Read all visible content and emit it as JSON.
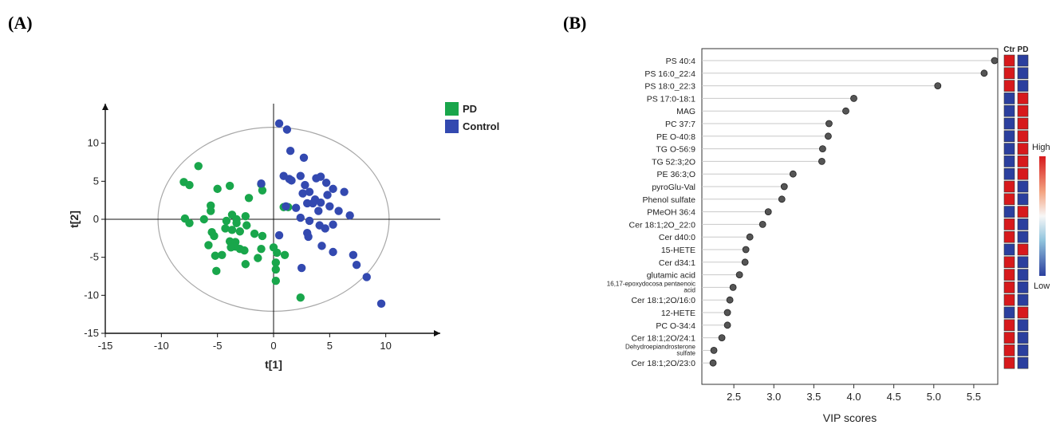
{
  "panels": {
    "a_label": "(A)",
    "b_label": "(B)"
  },
  "colors": {
    "pd": "#19a64b",
    "control": "#3349b0",
    "high": "#d7191c",
    "low": "#2b3f9e",
    "dot": "#555555"
  },
  "chart_data": [
    {
      "type": "scatter",
      "panel": "A",
      "title": "",
      "xlabel": "t[1]",
      "ylabel": "t[2]",
      "xlim": [
        -15,
        15
      ],
      "ylim": [
        -15,
        15
      ],
      "xticks": [
        -15,
        -10,
        -5,
        0,
        5,
        10
      ],
      "yticks": [
        -15,
        -10,
        -5,
        0,
        5,
        10
      ],
      "ellipse": {
        "rx": 10.3,
        "ry": 12.1
      },
      "legend_position": "top-right",
      "series": [
        {
          "name": "PD",
          "points": [
            [
              -8.0,
              4.9
            ],
            [
              -7.5,
              4.5
            ],
            [
              -6.7,
              7.0
            ],
            [
              -5.0,
              4.0
            ],
            [
              -3.9,
              4.4
            ],
            [
              -2.2,
              2.8
            ],
            [
              -1.1,
              4.6
            ],
            [
              -1.0,
              3.8
            ],
            [
              -5.6,
              1.8
            ],
            [
              -5.6,
              1.1
            ],
            [
              -6.2,
              0.0
            ],
            [
              -7.5,
              -0.5
            ],
            [
              -7.9,
              0.1
            ],
            [
              -4.2,
              -0.2
            ],
            [
              -3.7,
              0.6
            ],
            [
              -3.3,
              0.0
            ],
            [
              -2.5,
              0.4
            ],
            [
              -2.4,
              -0.8
            ],
            [
              -3.3,
              -0.5
            ],
            [
              -4.3,
              -1.2
            ],
            [
              -3.7,
              -1.4
            ],
            [
              -3.0,
              -1.6
            ],
            [
              -1.7,
              -1.9
            ],
            [
              -1.0,
              -2.2
            ],
            [
              -5.3,
              -2.2
            ],
            [
              -5.5,
              -1.7
            ],
            [
              -5.8,
              -3.4
            ],
            [
              -3.9,
              -2.9
            ],
            [
              -3.4,
              -3.0
            ],
            [
              -3.0,
              -3.9
            ],
            [
              -2.6,
              -4.1
            ],
            [
              -3.4,
              -3.6
            ],
            [
              -3.8,
              -3.7
            ],
            [
              -1.4,
              -5.1
            ],
            [
              -4.6,
              -4.7
            ],
            [
              -5.2,
              -4.8
            ],
            [
              -2.5,
              -5.9
            ],
            [
              -1.1,
              -3.9
            ],
            [
              -5.1,
              -6.8
            ],
            [
              0.0,
              -3.7
            ],
            [
              0.3,
              -4.4
            ],
            [
              1.0,
              -4.7
            ],
            [
              0.2,
              -5.7
            ],
            [
              0.2,
              -6.6
            ],
            [
              0.2,
              -8.1
            ],
            [
              2.4,
              -10.3
            ],
            [
              1.3,
              1.6
            ],
            [
              0.9,
              1.6
            ]
          ]
        },
        {
          "name": "Control",
          "points": [
            [
              0.5,
              12.6
            ],
            [
              1.2,
              11.8
            ],
            [
              1.5,
              9.0
            ],
            [
              2.7,
              8.1
            ],
            [
              0.9,
              5.7
            ],
            [
              1.4,
              5.3
            ],
            [
              1.6,
              5.1
            ],
            [
              2.4,
              5.7
            ],
            [
              3.8,
              5.4
            ],
            [
              4.2,
              5.6
            ],
            [
              4.7,
              4.8
            ],
            [
              5.3,
              4.0
            ],
            [
              6.3,
              3.6
            ],
            [
              2.8,
              4.5
            ],
            [
              2.6,
              3.4
            ],
            [
              3.2,
              3.6
            ],
            [
              3.7,
              2.6
            ],
            [
              4.8,
              3.2
            ],
            [
              3.0,
              2.1
            ],
            [
              3.5,
              2.1
            ],
            [
              4.2,
              2.2
            ],
            [
              5.0,
              1.7
            ],
            [
              4.0,
              1.1
            ],
            [
              5.8,
              1.1
            ],
            [
              6.8,
              0.5
            ],
            [
              2.0,
              1.5
            ],
            [
              1.1,
              1.7
            ],
            [
              2.4,
              0.2
            ],
            [
              3.2,
              -0.2
            ],
            [
              4.1,
              -0.8
            ],
            [
              4.6,
              -1.2
            ],
            [
              3.0,
              -1.8
            ],
            [
              0.5,
              -2.1
            ],
            [
              3.1,
              -2.3
            ],
            [
              4.3,
              -3.5
            ],
            [
              5.3,
              -4.3
            ],
            [
              7.1,
              -4.7
            ],
            [
              7.4,
              -6.0
            ],
            [
              8.3,
              -7.6
            ],
            [
              9.6,
              -11.1
            ],
            [
              2.5,
              -6.4
            ],
            [
              -1.1,
              4.7
            ],
            [
              5.3,
              -0.7
            ]
          ]
        }
      ]
    },
    {
      "type": "scatter",
      "panel": "B",
      "title": "",
      "xlabel": "VIP scores",
      "xlim": [
        2.1,
        5.8
      ],
      "xticks": [
        2.5,
        3.0,
        3.5,
        4.0,
        4.5,
        5.0,
        5.5
      ],
      "heatmap_columns": [
        "Ctr",
        "PD"
      ],
      "colorbar": {
        "high_label": "High",
        "low_label": "Low"
      },
      "features": [
        {
          "label": "PS 40:4",
          "vip": 5.76,
          "ctr": "high",
          "pd": "low",
          "small": false
        },
        {
          "label": "PS 16:0_22:4",
          "vip": 5.63,
          "ctr": "high",
          "pd": "low",
          "small": false
        },
        {
          "label": "PS 18:0_22:3",
          "vip": 5.05,
          "ctr": "high",
          "pd": "low",
          "small": false
        },
        {
          "label": "PS 17:0-18:1",
          "vip": 4.0,
          "ctr": "low",
          "pd": "high",
          "small": false
        },
        {
          "label": "MAG",
          "vip": 3.9,
          "ctr": "low",
          "pd": "high",
          "small": false
        },
        {
          "label": "PC 37:7",
          "vip": 3.69,
          "ctr": "low",
          "pd": "high",
          "small": false
        },
        {
          "label": "PE O-40:8",
          "vip": 3.68,
          "ctr": "low",
          "pd": "high",
          "small": false
        },
        {
          "label": "TG O-56:9",
          "vip": 3.61,
          "ctr": "low",
          "pd": "high",
          "small": false
        },
        {
          "label": "TG 52:3;2O",
          "vip": 3.6,
          "ctr": "low",
          "pd": "high",
          "small": false
        },
        {
          "label": "PE 36:3;O",
          "vip": 3.24,
          "ctr": "low",
          "pd": "high",
          "small": false
        },
        {
          "label": "pyroGlu-Val",
          "vip": 3.13,
          "ctr": "high",
          "pd": "low",
          "small": false
        },
        {
          "label": "Phenol sulfate",
          "vip": 3.1,
          "ctr": "high",
          "pd": "low",
          "small": false
        },
        {
          "label": "PMeOH 36:4",
          "vip": 2.93,
          "ctr": "low",
          "pd": "high",
          "small": false
        },
        {
          "label": "Cer 18:1;2O_22:0",
          "vip": 2.86,
          "ctr": "high",
          "pd": "low",
          "small": false
        },
        {
          "label": "Cer d40:0",
          "vip": 2.7,
          "ctr": "high",
          "pd": "low",
          "small": false
        },
        {
          "label": "15-HETE",
          "vip": 2.65,
          "ctr": "low",
          "pd": "high",
          "small": false
        },
        {
          "label": "Cer d34:1",
          "vip": 2.64,
          "ctr": "high",
          "pd": "low",
          "small": false
        },
        {
          "label": "glutamic acid",
          "vip": 2.57,
          "ctr": "high",
          "pd": "low",
          "small": false
        },
        {
          "label": "16,17-epoxydocosa pentaenoic acid",
          "vip": 2.49,
          "ctr": "high",
          "pd": "low",
          "small": true
        },
        {
          "label": "Cer 18:1;2O/16:0",
          "vip": 2.45,
          "ctr": "high",
          "pd": "low",
          "small": false
        },
        {
          "label": "12-HETE",
          "vip": 2.42,
          "ctr": "low",
          "pd": "high",
          "small": false
        },
        {
          "label": "PC O-34:4",
          "vip": 2.42,
          "ctr": "high",
          "pd": "low",
          "small": false
        },
        {
          "label": "Cer 18:1;2O/24:1",
          "vip": 2.35,
          "ctr": "high",
          "pd": "low",
          "small": false
        },
        {
          "label": "Dehydroepiandrosterone sulfate",
          "vip": 2.25,
          "ctr": "high",
          "pd": "low",
          "small": true
        },
        {
          "label": "Cer 18:1;2O/23:0",
          "vip": 2.24,
          "ctr": "high",
          "pd": "low",
          "small": false
        }
      ]
    }
  ]
}
